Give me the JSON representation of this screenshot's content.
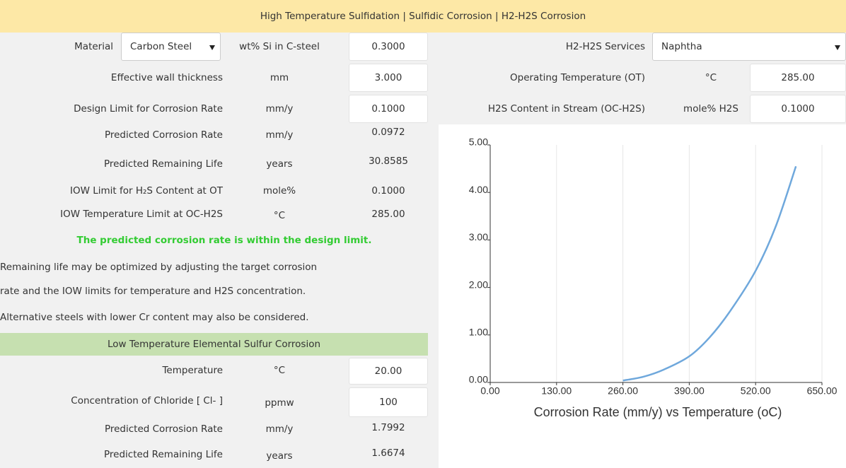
{
  "header": {
    "title": "High Temperature Sulfidation | Sulfidic Corrosion | H2-H2S Corrosion"
  },
  "material": {
    "label": "Material",
    "selected": "Carbon Steel"
  },
  "silicon": {
    "label": "wt% Si in C-steel",
    "value": "0.3000"
  },
  "services": {
    "label": "H2-H2S Services",
    "selected": "Naphtha"
  },
  "left_rows": [
    {
      "label": "Effective wall thickness",
      "unit": "mm",
      "value": "3.000"
    },
    {
      "label": "Design Limit for Corrosion Rate",
      "unit": "mm/y",
      "value": "0.1000"
    },
    {
      "label": "Predicted Corrosion Rate",
      "unit": "mm/y",
      "value": "0.0972"
    },
    {
      "label": "Predicted Remaining Life",
      "unit": "years",
      "value": "30.8585"
    },
    {
      "label": "IOW Limit for H₂S Content at OT",
      "unit": "mole%",
      "value": "0.1000"
    },
    {
      "label": "IOW Temperature Limit at OC-H2S",
      "unit": "°C",
      "value": "285.00"
    }
  ],
  "right_rows": [
    {
      "label": "Operating Temperature (OT)",
      "unit": "°C",
      "value": "285.00"
    },
    {
      "label": "H2S Content in Stream (OC-H2S)",
      "unit": "mole% H2S",
      "value": "0.1000"
    }
  ],
  "message": "The predicted corrosion rate is within the design limit.",
  "notes": [
    "Remaining life may be optimized by adjusting the target corrosion",
    "rate and the IOW limits for temperature and H2S concentration.",
    "Alternative steels with lower Cr content may also be considered."
  ],
  "low_temp": {
    "title": "Low Temperature Elemental Sulfur Corrosion",
    "rows": [
      {
        "label": "Temperature",
        "unit": "°C",
        "value": "20.00"
      },
      {
        "label": "Concentration of Chloride [ Cl- ]",
        "unit": "ppmw",
        "value": "100"
      },
      {
        "label": "Predicted Corrosion Rate",
        "unit": "mm/y",
        "value": "1.7992"
      },
      {
        "label": "Predicted Remaining Life",
        "unit": "years",
        "value": "1.6674"
      }
    ]
  },
  "chart_data": {
    "type": "line",
    "title": "Corrosion Rate (mm/y) vs Temperature (oC)",
    "x": [
      260,
      300,
      340,
      390,
      430,
      470,
      520,
      560,
      599
    ],
    "values": [
      0.04,
      0.12,
      0.27,
      0.55,
      0.95,
      1.5,
      2.35,
      3.3,
      4.55
    ],
    "color": "#6fa8dc",
    "xlim": [
      0,
      650
    ],
    "xticks": [
      {
        "value": 0,
        "label": "0.00"
      },
      {
        "value": 130,
        "label": "130.00"
      },
      {
        "value": 260,
        "label": "260.00"
      },
      {
        "value": 390,
        "label": "390.00"
      },
      {
        "value": 520,
        "label": "520.00"
      },
      {
        "value": 650,
        "label": "650.00"
      }
    ],
    "ylim": [
      0,
      5
    ],
    "yticks": [
      {
        "value": 0,
        "label": "0.00"
      },
      {
        "value": 1,
        "label": "1.00"
      },
      {
        "value": 2,
        "label": "2.00"
      },
      {
        "value": 3,
        "label": "3.00"
      },
      {
        "value": 4,
        "label": "4.00"
      },
      {
        "value": 5,
        "label": "5.00"
      }
    ],
    "grid": "x"
  }
}
